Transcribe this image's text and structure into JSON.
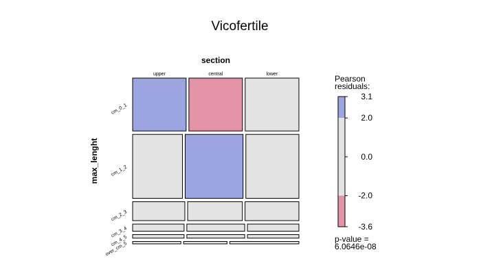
{
  "chart_data": {
    "type": "mosaic",
    "title": "Vicofertile",
    "column_variable": "section",
    "row_variable": "max_lenght",
    "columns": [
      "upper",
      "central",
      "lower"
    ],
    "rows": [
      "cm_0_1",
      "cm_1_2",
      "cm_2_3",
      "cm_3_4",
      "cm_4_5",
      "over_cm_5"
    ],
    "cell_shading": [
      [
        "positive",
        "negative",
        "neutral"
      ],
      [
        "neutral",
        "positive",
        "neutral"
      ],
      [
        "neutral",
        "neutral",
        "neutral"
      ],
      [
        "neutral",
        "neutral",
        "neutral"
      ],
      [
        "neutral",
        "neutral",
        "neutral"
      ],
      [
        "neutral",
        "neutral",
        "neutral"
      ]
    ],
    "row_proportions": [
      0.335,
      0.405,
      0.12,
      0.045,
      0.022,
      0.015
    ],
    "column_proportions_by_row": [
      [
        0.333,
        0.333,
        0.334
      ],
      [
        0.31,
        0.36,
        0.33
      ],
      [
        0.325,
        0.34,
        0.335
      ],
      [
        0.32,
        0.36,
        0.32
      ],
      [
        0.32,
        0.36,
        0.32
      ],
      [
        0.3,
        0.27,
        0.43
      ]
    ],
    "legend": {
      "title_line1": "Pearson",
      "title_line2": "residuals:",
      "range": [
        -3.6,
        3.1
      ],
      "ticks": [
        3.1,
        2.0,
        0.0,
        -2.0,
        -3.6
      ],
      "tick_labels": [
        "3.1",
        "2.0",
        "0.0",
        "-2.0",
        "-3.6"
      ],
      "pvalue_line1": "p-value =",
      "pvalue_line2": "6.0646e-08"
    },
    "colors": {
      "positive": "#9DA5E0",
      "negative": "#E293A6",
      "neutral": "#E3E3E3",
      "border": "#000000"
    }
  }
}
